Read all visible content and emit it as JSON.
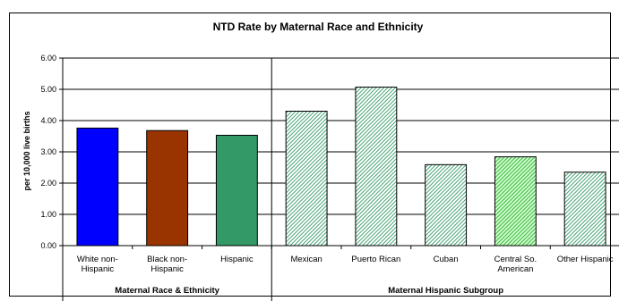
{
  "chart_data": {
    "type": "bar",
    "title": "NTD Rate by Maternal Race and Ethnicity",
    "ylabel": "per 10,000 live births",
    "xlabel": "",
    "ylim": [
      0,
      6
    ],
    "yticks": [
      "0.00",
      "1.00",
      "2.00",
      "3.00",
      "4.00",
      "5.00",
      "6.00"
    ],
    "grid": true,
    "categories": [
      "White non-Hispanic",
      "Black non-Hispanic",
      "Hispanic",
      "Mexican",
      "Puerto Rican",
      "Cuban",
      "Central So. American",
      "Other Hispanic"
    ],
    "category_lines": [
      [
        "White non-",
        "Hispanic"
      ],
      [
        "Black non-",
        "Hispanic"
      ],
      [
        "Hispanic"
      ],
      [
        "Mexican"
      ],
      [
        "Puerto Rican"
      ],
      [
        "Cuban"
      ],
      [
        "Central So.",
        "American"
      ],
      [
        "Other Hispanic"
      ]
    ],
    "values": [
      3.76,
      3.68,
      3.53,
      4.3,
      5.07,
      2.59,
      2.84,
      2.35
    ],
    "bar_colors": [
      "#0000ff",
      "#993300",
      "#339966",
      "#99ccaa",
      "#99ccaa",
      "#99ccaa",
      "#66cc66",
      "#99ccaa"
    ],
    "bar_patterned": [
      false,
      false,
      false,
      true,
      true,
      true,
      true,
      true
    ],
    "groups": [
      {
        "label": "Maternal Race & Ethnicity",
        "categories": [
          "White non-Hispanic",
          "Black non-Hispanic",
          "Hispanic"
        ]
      },
      {
        "label": "Maternal Hispanic Subgroup",
        "categories": [
          "Mexican",
          "Puerto Rican",
          "Cuban",
          "Central So. American",
          "Other Hispanic"
        ]
      }
    ]
  }
}
